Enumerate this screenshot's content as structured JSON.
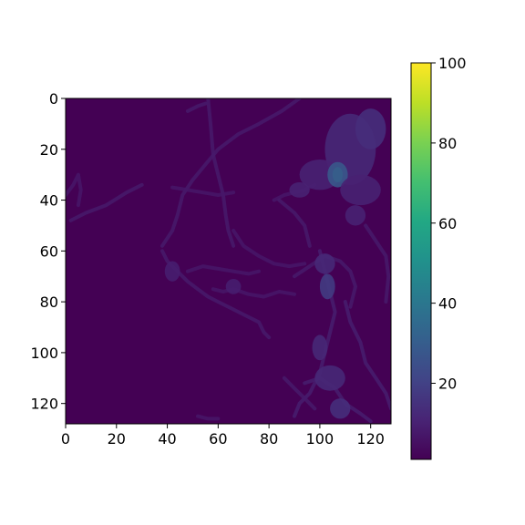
{
  "chart_data": {
    "type": "heatmap",
    "title": "",
    "xlabel": "",
    "ylabel": "",
    "xlim": [
      0,
      128
    ],
    "ylim": [
      128,
      0
    ],
    "x_ticks": [
      0,
      20,
      40,
      60,
      80,
      100,
      120
    ],
    "y_ticks": [
      0,
      20,
      40,
      60,
      80,
      100,
      120
    ],
    "x_tick_labels": [
      "0",
      "20",
      "40",
      "60",
      "80",
      "100",
      "120"
    ],
    "y_tick_labels": [
      "0",
      "20",
      "40",
      "60",
      "80",
      "100",
      "120"
    ],
    "colormap": "viridis",
    "colorbar": {
      "min": 1,
      "max": 100,
      "ticks": [
        20,
        40,
        60,
        80,
        100
      ],
      "tick_labels": [
        "20",
        "40",
        "60",
        "80",
        "100"
      ]
    },
    "grid": false,
    "background_value": 1,
    "structures": [
      {
        "name": "filament",
        "value": 8,
        "points": [
          [
            56,
            0
          ],
          [
            57,
            10
          ],
          [
            58,
            22
          ],
          [
            60,
            30
          ],
          [
            62,
            38
          ],
          [
            63,
            46
          ],
          [
            64,
            52
          ],
          [
            66,
            58
          ]
        ]
      },
      {
        "name": "filament",
        "value": 8,
        "points": [
          [
            48,
            5
          ],
          [
            52,
            3
          ],
          [
            55,
            2
          ]
        ]
      },
      {
        "name": "filament",
        "value": 7,
        "points": [
          [
            0,
            38
          ],
          [
            3,
            34
          ],
          [
            5,
            30
          ],
          [
            6,
            36
          ],
          [
            5,
            42
          ]
        ]
      },
      {
        "name": "filament",
        "value": 8,
        "points": [
          [
            2,
            48
          ],
          [
            8,
            45
          ],
          [
            16,
            42
          ],
          [
            24,
            37
          ],
          [
            30,
            34
          ]
        ]
      },
      {
        "name": "filament",
        "value": 8,
        "points": [
          [
            92,
            0
          ],
          [
            85,
            5
          ],
          [
            76,
            10
          ],
          [
            68,
            14
          ],
          [
            60,
            20
          ],
          [
            55,
            26
          ],
          [
            50,
            32
          ],
          [
            46,
            38
          ],
          [
            44,
            46
          ],
          [
            42,
            52
          ],
          [
            38,
            58
          ]
        ]
      },
      {
        "name": "filament",
        "value": 7,
        "points": [
          [
            42,
            35
          ],
          [
            48,
            36
          ],
          [
            54,
            37
          ],
          [
            60,
            38
          ],
          [
            66,
            37
          ]
        ]
      },
      {
        "name": "filament",
        "value": 7,
        "points": [
          [
            66,
            52
          ],
          [
            70,
            58
          ],
          [
            76,
            62
          ],
          [
            82,
            65
          ],
          [
            88,
            66
          ],
          [
            94,
            65
          ]
        ]
      },
      {
        "name": "filament",
        "value": 7,
        "points": [
          [
            82,
            40
          ],
          [
            86,
            38
          ],
          [
            90,
            37
          ],
          [
            94,
            36
          ],
          [
            98,
            34
          ]
        ]
      },
      {
        "name": "filament",
        "value": 8,
        "points": [
          [
            38,
            60
          ],
          [
            40,
            64
          ],
          [
            44,
            68
          ],
          [
            48,
            72
          ],
          [
            52,
            75
          ],
          [
            56,
            78
          ],
          [
            60,
            80
          ],
          [
            66,
            83
          ],
          [
            72,
            86
          ],
          [
            76,
            88
          ],
          [
            78,
            92
          ],
          [
            80,
            94
          ]
        ]
      },
      {
        "name": "filament",
        "value": 7,
        "points": [
          [
            48,
            68
          ],
          [
            54,
            66
          ],
          [
            60,
            67
          ],
          [
            66,
            68
          ],
          [
            72,
            69
          ],
          [
            76,
            68
          ]
        ]
      },
      {
        "name": "filament",
        "value": 7,
        "points": [
          [
            58,
            75
          ],
          [
            62,
            76
          ],
          [
            66,
            75
          ],
          [
            72,
            77
          ],
          [
            78,
            78
          ],
          [
            84,
            76
          ],
          [
            90,
            77
          ]
        ]
      },
      {
        "name": "filament",
        "value": 8,
        "points": [
          [
            90,
            70
          ],
          [
            96,
            66
          ],
          [
            102,
            62
          ],
          [
            108,
            64
          ],
          [
            112,
            68
          ],
          [
            114,
            74
          ],
          [
            112,
            82
          ]
        ]
      },
      {
        "name": "filament",
        "value": 9,
        "points": [
          [
            100,
            60
          ],
          [
            102,
            68
          ],
          [
            104,
            76
          ],
          [
            106,
            84
          ],
          [
            104,
            92
          ],
          [
            102,
            100
          ],
          [
            100,
            108
          ],
          [
            96,
            116
          ],
          [
            92,
            120
          ],
          [
            90,
            125
          ]
        ]
      },
      {
        "name": "filament",
        "value": 9,
        "points": [
          [
            110,
            80
          ],
          [
            112,
            88
          ],
          [
            116,
            96
          ],
          [
            118,
            104
          ],
          [
            122,
            110
          ],
          [
            126,
            116
          ],
          [
            128,
            122
          ]
        ]
      },
      {
        "name": "filament",
        "value": 9,
        "points": [
          [
            94,
            112
          ],
          [
            100,
            110
          ],
          [
            106,
            114
          ],
          [
            110,
            120
          ],
          [
            116,
            124
          ],
          [
            120,
            127
          ]
        ]
      },
      {
        "name": "filament",
        "value": 8,
        "points": [
          [
            86,
            110
          ],
          [
            90,
            114
          ],
          [
            94,
            118
          ],
          [
            98,
            122
          ]
        ]
      },
      {
        "name": "filament",
        "value": 7,
        "points": [
          [
            52,
            125
          ],
          [
            56,
            126
          ],
          [
            60,
            126
          ]
        ]
      },
      {
        "name": "filament",
        "value": 8,
        "points": [
          [
            118,
            50
          ],
          [
            122,
            56
          ],
          [
            126,
            62
          ],
          [
            127,
            70
          ],
          [
            126,
            80
          ]
        ]
      },
      {
        "name": "filament",
        "value": 8,
        "points": [
          [
            84,
            40
          ],
          [
            90,
            45
          ],
          [
            94,
            50
          ],
          [
            96,
            58
          ]
        ]
      },
      {
        "name": "blob",
        "value": 12,
        "cx": 112,
        "cy": 20,
        "rx": 10,
        "ry": 14
      },
      {
        "name": "blob",
        "value": 14,
        "cx": 120,
        "cy": 12,
        "rx": 6,
        "ry": 8
      },
      {
        "name": "blob",
        "value": 10,
        "cx": 100,
        "cy": 30,
        "rx": 8,
        "ry": 6
      },
      {
        "name": "blob",
        "value": 55,
        "cx": 107,
        "cy": 30,
        "rx": 2,
        "ry": 3
      },
      {
        "name": "blob",
        "value": 28,
        "cx": 107,
        "cy": 30,
        "rx": 4,
        "ry": 5
      },
      {
        "name": "blob",
        "value": 10,
        "cx": 116,
        "cy": 36,
        "rx": 8,
        "ry": 6
      },
      {
        "name": "blob",
        "value": 12,
        "cx": 102,
        "cy": 65,
        "rx": 4,
        "ry": 4
      },
      {
        "name": "blob",
        "value": 18,
        "cx": 103,
        "cy": 74,
        "rx": 3,
        "ry": 5
      },
      {
        "name": "blob",
        "value": 12,
        "cx": 100,
        "cy": 98,
        "rx": 3,
        "ry": 5
      },
      {
        "name": "blob",
        "value": 12,
        "cx": 104,
        "cy": 110,
        "rx": 6,
        "ry": 5
      },
      {
        "name": "blob",
        "value": 14,
        "cx": 108,
        "cy": 122,
        "rx": 4,
        "ry": 4
      },
      {
        "name": "blob",
        "value": 10,
        "cx": 92,
        "cy": 36,
        "rx": 4,
        "ry": 3
      },
      {
        "name": "blob",
        "value": 10,
        "cx": 114,
        "cy": 46,
        "rx": 4,
        "ry": 4
      },
      {
        "name": "blob",
        "value": 9,
        "cx": 42,
        "cy": 68,
        "rx": 3,
        "ry": 4
      },
      {
        "name": "blob",
        "value": 9,
        "cx": 66,
        "cy": 74,
        "rx": 3,
        "ry": 3
      }
    ]
  }
}
